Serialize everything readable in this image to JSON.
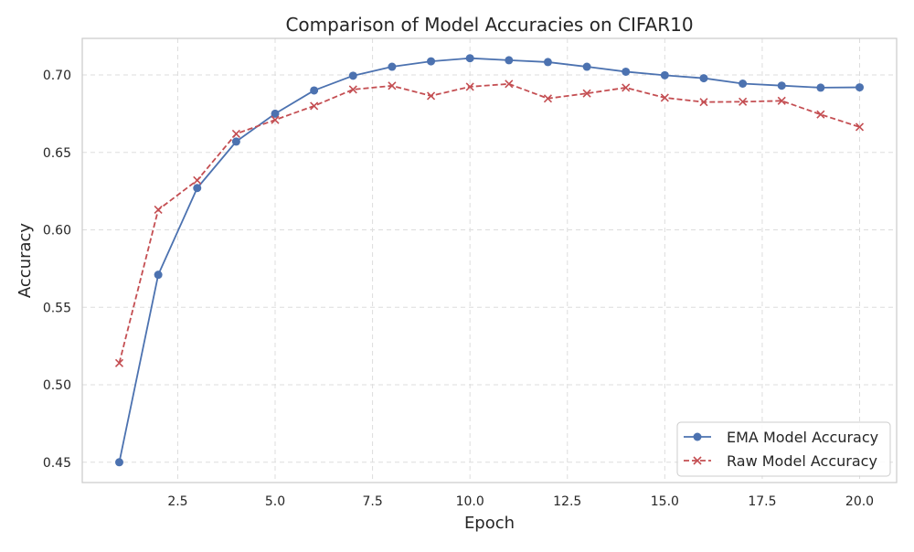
{
  "chart_data": {
    "type": "line",
    "title": "Comparison of Model Accuracies on CIFAR10",
    "xlabel": "Epoch",
    "ylabel": "Accuracy",
    "xlim": [
      0.05,
      20.95
    ],
    "ylim": [
      0.4369,
      0.7236
    ],
    "xticks": [
      2.5,
      5.0,
      7.5,
      10.0,
      12.5,
      15.0,
      17.5,
      20.0
    ],
    "yticks": [
      0.45,
      0.5,
      0.55,
      0.6,
      0.65,
      0.7
    ],
    "grid": true,
    "legend_position": "lower-right",
    "x": [
      1,
      2,
      3,
      4,
      5,
      6,
      7,
      8,
      9,
      10,
      11,
      12,
      13,
      14,
      15,
      16,
      17,
      18,
      19,
      20
    ],
    "series": [
      {
        "name": "EMA Model Accuracy",
        "color": "#4c72b0",
        "line_style": "solid",
        "marker": "circle",
        "values": [
          0.45,
          0.571,
          0.627,
          0.657,
          0.675,
          0.69,
          0.6995,
          0.7053,
          0.7088,
          0.7108,
          0.7095,
          0.7083,
          0.7053,
          0.7021,
          0.6998,
          0.6979,
          0.6944,
          0.6931,
          0.6918,
          0.692
        ]
      },
      {
        "name": "Raw Model Accuracy",
        "color": "#c44e52",
        "line_style": "dashed",
        "marker": "x",
        "values": [
          0.514,
          0.613,
          0.632,
          0.662,
          0.671,
          0.68,
          0.6906,
          0.693,
          0.6865,
          0.6924,
          0.6942,
          0.6848,
          0.6881,
          0.6918,
          0.6853,
          0.6825,
          0.6827,
          0.6833,
          0.6745,
          0.6664
        ]
      }
    ]
  }
}
